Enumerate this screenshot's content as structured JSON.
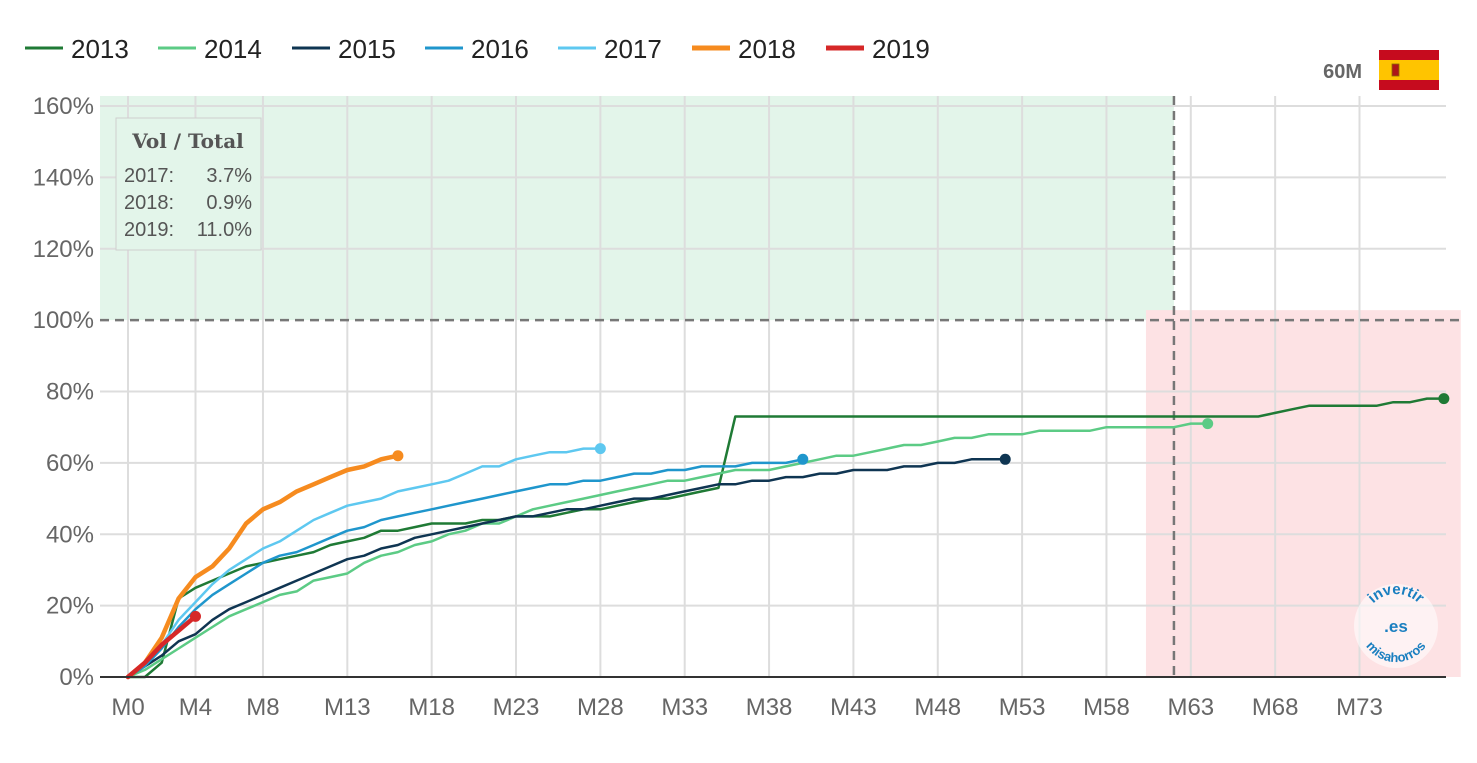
{
  "header": {
    "population_label": "60M",
    "flag": {
      "icon": "spain-flag-icon",
      "colors": [
        "#c60b1e",
        "#ffc400",
        "#c60b1e"
      ]
    }
  },
  "infobox": {
    "title": "Vol / Total",
    "rows": [
      {
        "year": "2017:",
        "value": "3.7%"
      },
      {
        "year": "2018:",
        "value": "0.9%"
      },
      {
        "year": "2019:",
        "value": "11.0%"
      }
    ]
  },
  "watermark": {
    "top": "invertir",
    "center": ".es",
    "bottom": "misahorros"
  },
  "chart_data": {
    "type": "line",
    "xlim": [
      0,
      79
    ],
    "ylim": [
      0,
      160
    ],
    "x_ticks": [
      0,
      4,
      8,
      13,
      18,
      23,
      28,
      33,
      38,
      43,
      48,
      53,
      58,
      63,
      68,
      73
    ],
    "x_tick_labels": [
      "M0",
      "M4",
      "M8",
      "M13",
      "M18",
      "M23",
      "M28",
      "M33",
      "M38",
      "M43",
      "M48",
      "M53",
      "M58",
      "M63",
      "M68",
      "M73"
    ],
    "y_ticks": [
      0,
      20,
      40,
      60,
      80,
      100,
      120,
      140,
      160
    ],
    "y_tick_labels": [
      "0%",
      "20%",
      "40%",
      "60%",
      "80%",
      "100%",
      "120%",
      "140%",
      "160%"
    ],
    "reference_line_y": 100,
    "reference_line_x": 62,
    "zones": [
      {
        "name": "green-zone",
        "x": [
          0,
          62
        ],
        "y": [
          100,
          160
        ],
        "color": "#e3f5ea"
      },
      {
        "name": "red-zone",
        "x": [
          62,
          79
        ],
        "y": [
          0,
          100
        ],
        "color": "#fde2e4"
      }
    ],
    "legend_placement": "top-left",
    "series": [
      {
        "name": "2013",
        "color": "#1f7a35",
        "width": 2.5,
        "x": [
          0,
          1,
          2,
          3,
          4,
          5,
          6,
          7,
          8,
          9,
          10,
          11,
          12,
          13,
          14,
          15,
          16,
          17,
          18,
          19,
          20,
          21,
          22,
          23,
          24,
          25,
          26,
          27,
          28,
          29,
          30,
          31,
          32,
          33,
          34,
          35,
          36,
          62,
          63,
          64,
          65,
          66,
          67,
          68,
          69,
          70,
          71,
          72,
          73,
          74,
          75,
          76,
          77,
          78
        ],
        "y": [
          0,
          0,
          4,
          22,
          25,
          27,
          29,
          31,
          32,
          33,
          34,
          35,
          37,
          38,
          39,
          41,
          41,
          42,
          43,
          43,
          43,
          44,
          44,
          45,
          45,
          45,
          46,
          47,
          47,
          48,
          49,
          50,
          50,
          51,
          52,
          53,
          73,
          73,
          73,
          73,
          73,
          73,
          73,
          74,
          75,
          76,
          76,
          76,
          76,
          76,
          77,
          77,
          78,
          78
        ]
      },
      {
        "name": "2014",
        "color": "#5ccb85",
        "width": 2.5,
        "x": [
          0,
          1,
          2,
          3,
          4,
          5,
          6,
          7,
          8,
          9,
          10,
          11,
          12,
          13,
          14,
          15,
          16,
          17,
          18,
          19,
          20,
          21,
          22,
          23,
          24,
          25,
          26,
          27,
          28,
          29,
          30,
          31,
          32,
          33,
          34,
          35,
          36,
          37,
          38,
          39,
          40,
          41,
          42,
          43,
          44,
          45,
          46,
          47,
          48,
          49,
          50,
          51,
          52,
          53,
          54,
          55,
          56,
          57,
          58,
          59,
          60,
          61,
          62,
          63,
          64
        ],
        "y": [
          0,
          2,
          5,
          8,
          11,
          14,
          17,
          19,
          21,
          23,
          24,
          27,
          28,
          29,
          32,
          34,
          35,
          37,
          38,
          40,
          41,
          43,
          43,
          45,
          47,
          48,
          49,
          50,
          51,
          52,
          53,
          54,
          55,
          55,
          56,
          57,
          58,
          58,
          58,
          59,
          60,
          61,
          62,
          62,
          63,
          64,
          65,
          65,
          66,
          67,
          67,
          68,
          68,
          68,
          69,
          69,
          69,
          69,
          70,
          70,
          70,
          70,
          70,
          71,
          71
        ]
      },
      {
        "name": "2015",
        "color": "#0f3552",
        "width": 2.5,
        "x": [
          0,
          1,
          2,
          3,
          4,
          5,
          6,
          7,
          8,
          9,
          10,
          11,
          12,
          13,
          14,
          15,
          16,
          17,
          18,
          19,
          20,
          21,
          22,
          23,
          24,
          25,
          26,
          27,
          28,
          29,
          30,
          31,
          32,
          33,
          34,
          35,
          36,
          37,
          38,
          39,
          40,
          41,
          42,
          43,
          44,
          45,
          46,
          47,
          48,
          49,
          50,
          51,
          52
        ],
        "y": [
          0,
          3,
          6,
          10,
          12,
          16,
          19,
          21,
          23,
          25,
          27,
          29,
          31,
          33,
          34,
          36,
          37,
          39,
          40,
          41,
          42,
          43,
          44,
          45,
          45,
          46,
          47,
          47,
          48,
          49,
          50,
          50,
          51,
          52,
          53,
          54,
          54,
          55,
          55,
          56,
          56,
          57,
          57,
          58,
          58,
          58,
          59,
          59,
          60,
          60,
          61,
          61,
          61
        ]
      },
      {
        "name": "2016",
        "color": "#1f96cc",
        "width": 2.5,
        "x": [
          0,
          1,
          2,
          3,
          4,
          5,
          6,
          7,
          8,
          9,
          10,
          11,
          12,
          13,
          14,
          15,
          16,
          17,
          18,
          19,
          20,
          21,
          22,
          23,
          24,
          25,
          26,
          27,
          28,
          29,
          30,
          31,
          32,
          33,
          34,
          35,
          36,
          37,
          38,
          39,
          40
        ],
        "y": [
          0,
          3,
          8,
          14,
          19,
          23,
          26,
          29,
          32,
          34,
          35,
          37,
          39,
          41,
          42,
          44,
          45,
          46,
          47,
          48,
          49,
          50,
          51,
          52,
          53,
          54,
          54,
          55,
          55,
          56,
          57,
          57,
          58,
          58,
          59,
          59,
          59,
          60,
          60,
          60,
          61
        ]
      },
      {
        "name": "2017",
        "color": "#5ec8f0",
        "width": 2.5,
        "x": [
          0,
          1,
          2,
          3,
          4,
          5,
          6,
          7,
          8,
          9,
          10,
          11,
          12,
          13,
          14,
          15,
          16,
          17,
          18,
          19,
          20,
          21,
          22,
          23,
          24,
          25,
          26,
          27,
          28
        ],
        "y": [
          0,
          4,
          9,
          16,
          21,
          26,
          30,
          33,
          36,
          38,
          41,
          44,
          46,
          48,
          49,
          50,
          52,
          53,
          54,
          55,
          57,
          59,
          59,
          61,
          62,
          63,
          63,
          64,
          64
        ]
      },
      {
        "name": "2018",
        "color": "#f68b1f",
        "width": 4.5,
        "x": [
          0,
          1,
          2,
          3,
          4,
          5,
          6,
          7,
          8,
          9,
          10,
          11,
          12,
          13,
          14,
          15,
          16
        ],
        "y": [
          0,
          4,
          11,
          22,
          28,
          31,
          36,
          43,
          47,
          49,
          52,
          54,
          56,
          58,
          59,
          61,
          62
        ]
      },
      {
        "name": "2019",
        "color": "#d62828",
        "width": 4.5,
        "x": [
          0,
          1,
          2,
          3,
          4
        ],
        "y": [
          0,
          4,
          9,
          13,
          17
        ]
      }
    ]
  }
}
